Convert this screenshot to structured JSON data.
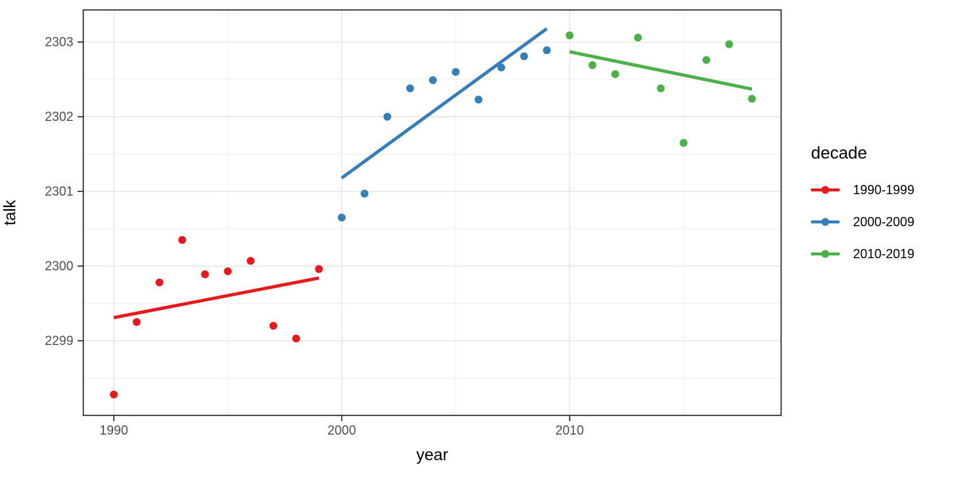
{
  "chart_data": {
    "type": "scatter",
    "xlabel": "year",
    "ylabel": "talk",
    "legend_title": "decade",
    "legend_position": "right",
    "grid": true,
    "background": "#ffffff",
    "panel_border_color": "#333333",
    "grid_major_color": "#e4e4e4",
    "grid_minor_color": "#f0f0f0",
    "axis_text_color": "#4d4d4d",
    "xlim": [
      1988.66,
      2019.28
    ],
    "ylim": [
      2298.0,
      2303.43
    ],
    "x_ticks": [
      1990,
      2000,
      2010
    ],
    "x_minor_ticks": [
      1995,
      2005,
      2015
    ],
    "y_ticks": [
      2303,
      2302,
      2301,
      2300,
      2299
    ],
    "y_minor_ticks": [
      2302.5,
      2301.5,
      2300.5,
      2299.5,
      2298.5
    ],
    "series": [
      {
        "name": "1990-1999",
        "color": "#E41A1C",
        "x": [
          1990,
          1991,
          1992,
          1993,
          1994,
          1995,
          1996,
          1997,
          1998,
          1999
        ],
        "y": [
          2298.28,
          2299.25,
          2299.78,
          2300.35,
          2299.89,
          2299.93,
          2300.07,
          2299.2,
          2299.03,
          2299.96
        ],
        "trend": {
          "x1": 1990,
          "y1": 2299.31,
          "x2": 1999,
          "y2": 2299.84
        }
      },
      {
        "name": "2000-2009",
        "color": "#377EB8",
        "x": [
          2000,
          2001,
          2002,
          2003,
          2004,
          2005,
          2006,
          2007,
          2008,
          2009
        ],
        "y": [
          2300.65,
          2300.97,
          2302.0,
          2302.38,
          2302.49,
          2302.6,
          2302.23,
          2302.66,
          2302.81,
          2302.89
        ],
        "trend": {
          "x1": 2000,
          "y1": 2301.18,
          "x2": 2009,
          "y2": 2303.18
        }
      },
      {
        "name": "2010-2019",
        "color": "#4DAF4A",
        "x": [
          2010,
          2011,
          2012,
          2013,
          2014,
          2015,
          2016,
          2017,
          2018
        ],
        "y": [
          2303.09,
          2302.69,
          2302.57,
          2303.06,
          2302.38,
          2301.65,
          2302.76,
          2302.97,
          2302.24
        ],
        "trend": {
          "x1": 2010,
          "y1": 2302.87,
          "x2": 2018,
          "y2": 2302.37
        }
      }
    ]
  }
}
